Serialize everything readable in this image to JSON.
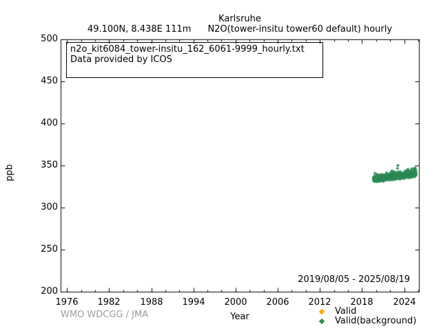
{
  "header": {
    "title": "Karlsruhe",
    "coords": "49.100N, 8.438E 111m",
    "dataset": "N2O(tower-insitu tower60 default) hourly"
  },
  "infobox": {
    "line1": "n2o_kit6084_tower-insitu_162_6061-9999_hourly.txt",
    "line2": "Data provided by ICOS"
  },
  "footer": {
    "credit": "WMO WDCGG / JMA"
  },
  "chart_data": {
    "type": "scatter",
    "title": "Karlsruhe",
    "xlabel": "Year",
    "ylabel": "ppb",
    "xlim": [
      1975.1,
      2026.1
    ],
    "ylim": [
      200,
      500
    ],
    "x_major_ticks": [
      1976,
      1982,
      1988,
      1994,
      2000,
      2006,
      2012,
      2018,
      2024
    ],
    "x_minor_step": 2,
    "y_major_ticks": [
      200,
      250,
      300,
      350,
      400,
      450,
      500
    ],
    "grid": false,
    "legend_position": "bottom-right-outside",
    "annotation": "2019/08/05 - 2025/08/19",
    "series": [
      {
        "name": "Valid",
        "color": "#ffa500",
        "marker": "diamond",
        "points": []
      },
      {
        "name": "Valid(background)",
        "color": "#2e8b57",
        "marker": "diamond",
        "coverage": {
          "start_year": 2019.59,
          "end_year": 2025.63,
          "n_points": 2300
        },
        "trend": [
          [
            2019.59,
            334.6
          ],
          [
            2020.5,
            335.4
          ],
          [
            2021.5,
            336.3
          ],
          [
            2022.5,
            337.3
          ],
          [
            2023.5,
            338.3
          ],
          [
            2024.5,
            339.3
          ],
          [
            2025.63,
            340.4
          ]
        ],
        "noise_ppb": 1.5,
        "outliers": [
          [
            2023.05,
            350.5
          ]
        ]
      }
    ]
  }
}
